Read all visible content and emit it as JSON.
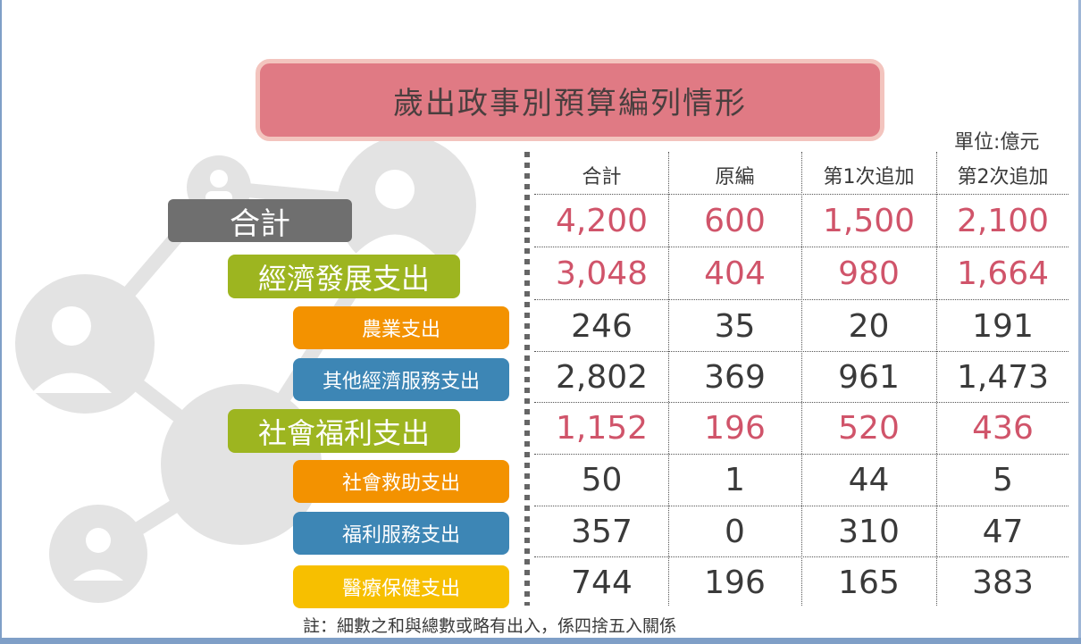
{
  "title": "歲出政事別預算編列情形",
  "unit": "單位:億元",
  "columns": [
    "合計",
    "原編",
    "第1次追加",
    "第2次追加"
  ],
  "rows": [
    {
      "label": "合計",
      "style": "gray",
      "highlight": true,
      "values": [
        "4,200",
        "600",
        "1,500",
        "2,100"
      ]
    },
    {
      "label": "經濟發展支出",
      "style": "green",
      "highlight": true,
      "values": [
        "3,048",
        "404",
        "980",
        "1,664"
      ]
    },
    {
      "label": "農業支出",
      "style": "orange",
      "highlight": false,
      "values": [
        "246",
        "35",
        "20",
        "191"
      ]
    },
    {
      "label": "其他經濟服務支出",
      "style": "blue",
      "highlight": false,
      "values": [
        "2,802",
        "369",
        "961",
        "1,473"
      ]
    },
    {
      "label": "社會福利支出",
      "style": "green",
      "highlight": true,
      "values": [
        "1,152",
        "196",
        "520",
        "436"
      ]
    },
    {
      "label": "社會救助支出",
      "style": "orange",
      "highlight": false,
      "values": [
        "50",
        "1",
        "44",
        "5"
      ]
    },
    {
      "label": "福利服務支出",
      "style": "blue",
      "highlight": false,
      "values": [
        "357",
        "0",
        "310",
        "47"
      ]
    },
    {
      "label": "醫療保健支出",
      "style": "yellow",
      "highlight": false,
      "values": [
        "744",
        "196",
        "165",
        "383"
      ]
    }
  ],
  "note": "註：細數之和與總數或略有出入，係四捨五入關係",
  "colors": {
    "title_bg": "#e07a84",
    "highlight_text": "#d0546a",
    "gray": "#6f6f6f",
    "green": "#9db520",
    "orange": "#f39200",
    "blue": "#3d86b5",
    "yellow": "#f7bf00"
  },
  "background_art": "network-people-icon"
}
